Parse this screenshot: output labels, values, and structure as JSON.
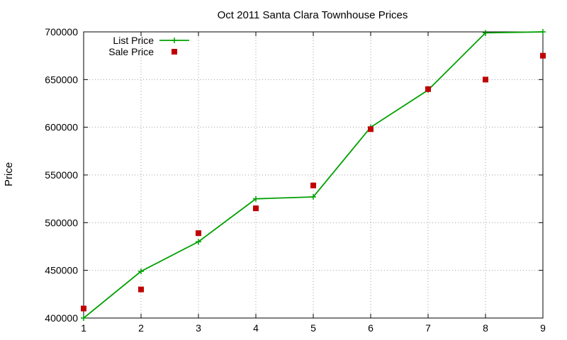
{
  "chart_data": {
    "type": "line",
    "title": "Oct 2011 Santa Clara Townhouse Prices",
    "xlabel": "",
    "ylabel": "Price",
    "x": [
      1,
      2,
      3,
      4,
      5,
      6,
      7,
      8,
      9
    ],
    "xlim": [
      1,
      9
    ],
    "ylim": [
      400000,
      700000
    ],
    "xticks": [
      "1",
      "2",
      "3",
      "4",
      "5",
      "6",
      "7",
      "8",
      "9"
    ],
    "yticks": [
      "400000",
      "450000",
      "500000",
      "550000",
      "600000",
      "650000",
      "700000"
    ],
    "grid": true,
    "legend_position": "top-left",
    "series": [
      {
        "name": "List Price",
        "style": "linespoints",
        "marker": "plus",
        "color": "#00a000",
        "values": [
          400000,
          449000,
          480000,
          525000,
          527000,
          600000,
          639000,
          699000,
          700000
        ]
      },
      {
        "name": "Sale Price",
        "style": "points",
        "marker": "square",
        "color": "#c00000",
        "values": [
          410000,
          430000,
          489000,
          515000,
          539000,
          598000,
          640000,
          650000,
          675000
        ]
      }
    ]
  }
}
